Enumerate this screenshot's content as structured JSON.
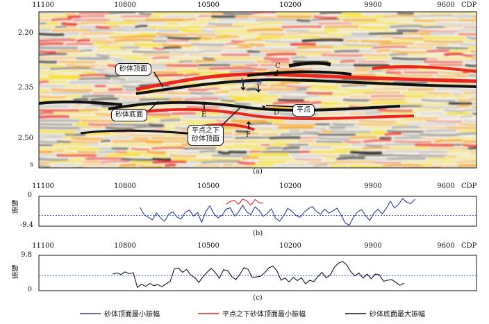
{
  "figure": {
    "panel_a": {
      "caption": "(a)",
      "x_ticks": [
        "11100",
        "10800",
        "10500",
        "10200",
        "9900",
        "9600"
      ],
      "x_unit": "CDP",
      "y_ticks": [
        "2.20",
        "2.35",
        "2.50"
      ],
      "y_unit": "s",
      "annotations": {
        "sand_top": "砂体顶面",
        "sand_bottom": "砂体底面",
        "flat_spot": "平点",
        "below_flat_line1": "平点之下",
        "below_flat_line2": "砂体顶面"
      },
      "markers": [
        "A",
        "B",
        "C",
        "D",
        "E",
        "F"
      ],
      "colors": {
        "peak_red": "#e8281e",
        "mid_orange": "#f5a020",
        "yellow": "#f8e028",
        "trough_black": "#111111",
        "background": "#f3efe4"
      }
    },
    "panel_b": {
      "caption": "(b)",
      "x_ticks": [
        "11100",
        "10800",
        "10500",
        "10200",
        "9900",
        "9600"
      ],
      "x_unit": "CDP",
      "y_label": "振幅",
      "y_ticks": [
        "0",
        "-9.4"
      ]
    },
    "panel_c": {
      "caption": "(c)",
      "x_ticks": [
        "11100",
        "10800",
        "10500",
        "10200",
        "9900",
        "9600"
      ],
      "x_unit": "CDP",
      "y_label": "振幅",
      "y_ticks": [
        "9.8",
        "0"
      ]
    },
    "legend": [
      {
        "label": "砂体顶面最小振幅",
        "color": "#2b3a9e"
      },
      {
        "label": "平点之下砂体顶面最小振幅",
        "color": "#e02020"
      },
      {
        "label": "砂体底面最大振幅",
        "color": "#111111"
      }
    ]
  },
  "chart_data": [
    {
      "type": "line",
      "panel": "b",
      "xlabel": "CDP",
      "ylabel": "振幅",
      "xlim": [
        11100,
        9500
      ],
      "ylim": [
        -9.4,
        0
      ],
      "reference_line": -6.0,
      "series": [
        {
          "name": "砂体顶面最小振幅",
          "color": "#2b3a9e",
          "x": [
            10730,
            10715,
            10700,
            10685,
            10670,
            10655,
            10640,
            10625,
            10610,
            10595,
            10580,
            10565,
            10550,
            10535,
            10520,
            10505,
            10490,
            10475,
            10460,
            10445,
            10430,
            10415,
            10400,
            10385,
            10370,
            10355,
            10340,
            10325,
            10310,
            10295,
            10280,
            10265,
            10250,
            10235,
            10220,
            10205,
            10190,
            10175,
            10160,
            10145,
            10130,
            10115,
            10100,
            10085,
            10070,
            10055,
            10040,
            10025,
            10010,
            9995,
            9980,
            9965,
            9950,
            9935,
            9920,
            9905,
            9890,
            9875,
            9860,
            9845,
            9830,
            9815,
            9800,
            9785,
            9770,
            9755,
            9740,
            9725
          ],
          "y": [
            -3.5,
            -5.8,
            -6.6,
            -7.4,
            -5.2,
            -6.9,
            -7.8,
            -5.6,
            -4.9,
            -6.5,
            -7.1,
            -5.0,
            -4.3,
            -6.2,
            -5.1,
            -8.2,
            -4.8,
            -3.0,
            -5.5,
            -6.8,
            -5.9,
            -4.0,
            -3.6,
            -6.2,
            -5.0,
            -2.8,
            -4.9,
            -5.8,
            -3.3,
            -4.4,
            -6.3,
            -5.4,
            -3.9,
            -6.8,
            -7.9,
            -6.1,
            -3.8,
            -4.7,
            -6.0,
            -6.6,
            -5.0,
            -3.9,
            -3.2,
            -4.8,
            -5.6,
            -4.0,
            -5.3,
            -4.6,
            -3.7,
            -5.9,
            -8.4,
            -9.1,
            -6.6,
            -4.9,
            -4.2,
            -6.1,
            -7.6,
            -5.3,
            -4.0,
            -5.6,
            -3.8,
            -1.5,
            -3.7,
            -2.5,
            -0.7,
            -1.9,
            -2.3,
            -0.9
          ]
        },
        {
          "name": "平点之下砂体顶面最小振幅",
          "color": "#e02020",
          "x": [
            10415,
            10400,
            10385,
            10370,
            10355,
            10340,
            10325,
            10310,
            10295,
            10280
          ],
          "y": [
            -2.5,
            -1.6,
            -1.3,
            -2.5,
            -0.9,
            -1.4,
            -2.8,
            -1.0,
            -2.0,
            -2.2
          ]
        }
      ]
    },
    {
      "type": "line",
      "panel": "c",
      "xlabel": "CDP",
      "ylabel": "振幅",
      "xlim": [
        11100,
        9500
      ],
      "ylim": [
        0,
        9.8
      ],
      "reference_line": 4.2,
      "series": [
        {
          "name": "砂体底面最大振幅",
          "color": "#111111",
          "x": [
            10830,
            10815,
            10800,
            10785,
            10770,
            10755,
            10740,
            10725,
            10710,
            10695,
            10680,
            10665,
            10650,
            10635,
            10620,
            10605,
            10590,
            10575,
            10560,
            10545,
            10530,
            10515,
            10500,
            10485,
            10470,
            10455,
            10440,
            10425,
            10410,
            10395,
            10380,
            10365,
            10350,
            10335,
            10320,
            10305,
            10290,
            10275,
            10260,
            10245,
            10230,
            10215,
            10200,
            10185,
            10170,
            10155,
            10140,
            10125,
            10110,
            10095,
            10080,
            10065,
            10050,
            10035,
            10020,
            10005,
            9990,
            9975,
            9960,
            9945,
            9930,
            9915,
            9900,
            9885,
            9870,
            9855,
            9840,
            9825,
            9810,
            9795,
            9780,
            9765
          ],
          "y": [
            4.6,
            4.9,
            4.5,
            5.2,
            4.7,
            5.0,
            0.9,
            1.8,
            1.2,
            2.0,
            1.4,
            1.7,
            1.1,
            1.9,
            2.6,
            6.0,
            6.3,
            5.1,
            5.9,
            4.4,
            3.6,
            2.3,
            3.9,
            5.1,
            6.2,
            5.0,
            3.4,
            5.8,
            5.6,
            3.9,
            3.1,
            4.5,
            6.4,
            5.9,
            3.7,
            3.8,
            4.0,
            4.9,
            6.3,
            6.8,
            5.6,
            2.9,
            3.5,
            2.4,
            3.7,
            2.8,
            3.6,
            1.9,
            2.9,
            2.5,
            3.9,
            5.1,
            3.6,
            4.3,
            6.5,
            7.6,
            8.1,
            7.2,
            5.3,
            4.1,
            4.9,
            3.5,
            4.6,
            3.3,
            4.6,
            4.4,
            2.6,
            2.9,
            3.1,
            2.3,
            1.5,
            2.1
          ]
        }
      ]
    }
  ]
}
